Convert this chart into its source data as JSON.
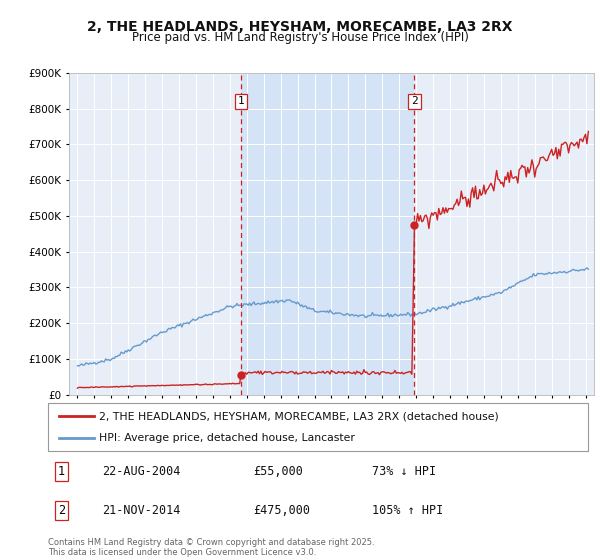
{
  "title": "2, THE HEADLANDS, HEYSHAM, MORECAMBE, LA3 2RX",
  "subtitle": "Price paid vs. HM Land Registry's House Price Index (HPI)",
  "title_fontsize": 10,
  "subtitle_fontsize": 8.5,
  "background_color": "#ffffff",
  "plot_background_color": "#e8eef8",
  "highlight_color": "#ddeeff",
  "grid_color": "#ffffff",
  "sale1_date": 2004.64,
  "sale1_price": 55000,
  "sale1_label": "1",
  "sale1_date_str": "22-AUG-2004",
  "sale1_amount": "£55,000",
  "sale1_pct": "73% ↓ HPI",
  "sale2_date": 2014.9,
  "sale2_price": 475000,
  "sale2_label": "2",
  "sale2_date_str": "21-NOV-2014",
  "sale2_amount": "£475,000",
  "sale2_pct": "105% ↑ HPI",
  "hpi_color": "#6699cc",
  "price_color": "#cc2222",
  "ylim": [
    0,
    900000
  ],
  "legend1_label": "2, THE HEADLANDS, HEYSHAM, MORECAMBE, LA3 2RX (detached house)",
  "legend2_label": "HPI: Average price, detached house, Lancaster",
  "footer": "Contains HM Land Registry data © Crown copyright and database right 2025.\nThis data is licensed under the Open Government Licence v3.0.",
  "xlim_start": 1994.5,
  "xlim_end": 2025.5
}
